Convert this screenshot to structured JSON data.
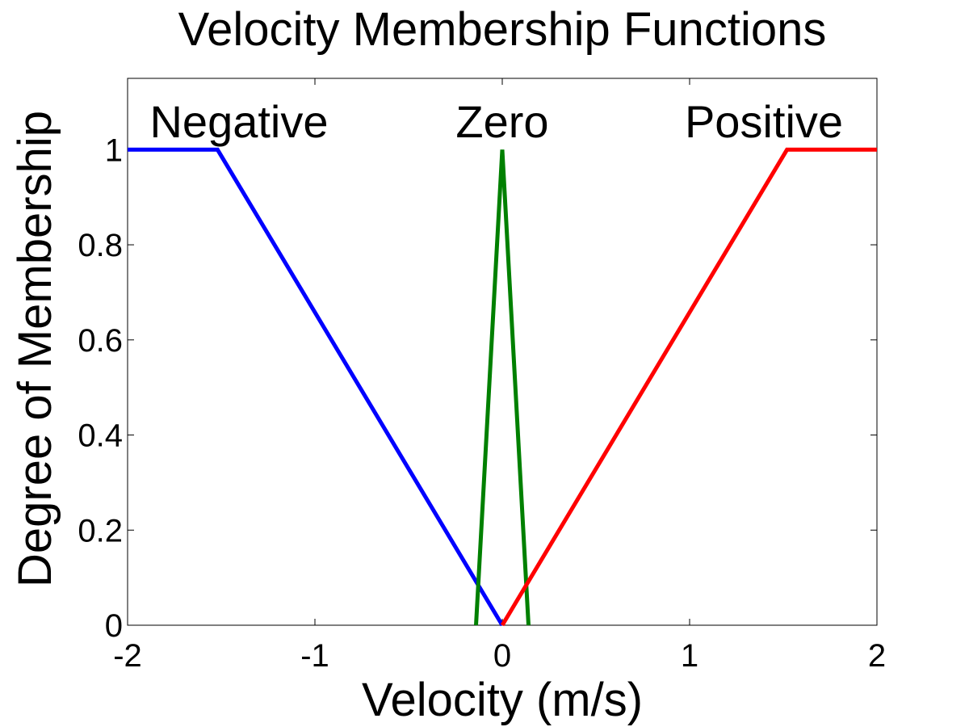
{
  "chart_data": {
    "type": "line",
    "title": "Velocity Membership Functions",
    "xlabel": "Velocity (m/s)",
    "ylabel": "Degree of Membership",
    "xlim": [
      -2,
      2
    ],
    "ylim": [
      0,
      1.15
    ],
    "xticks": [
      -2,
      -1,
      0,
      1,
      2
    ],
    "xtick_labels": [
      "-2",
      "-1",
      "0",
      "1",
      "2"
    ],
    "yticks": [
      0,
      0.2,
      0.4,
      0.6,
      0.8,
      1
    ],
    "ytick_labels": [
      "0",
      "0.2",
      "0.4",
      "0.6",
      "0.8",
      "1"
    ],
    "grid": false,
    "series": [
      {
        "key": "negative",
        "color": "#0000ff",
        "x": [
          -2,
          -1.52,
          0
        ],
        "y": [
          1,
          1,
          0
        ]
      },
      {
        "key": "zero",
        "color": "#008000",
        "x": [
          -0.14,
          0,
          0.14
        ],
        "y": [
          0,
          1,
          0
        ]
      },
      {
        "key": "positive",
        "color": "#ff0000",
        "x": [
          0,
          1.52,
          2
        ],
        "y": [
          0,
          1,
          1
        ]
      }
    ],
    "annotations": [
      {
        "key": "negative",
        "text": "Negative"
      },
      {
        "key": "zero",
        "text": "Zero"
      },
      {
        "key": "positive",
        "text": "Positive"
      }
    ]
  }
}
